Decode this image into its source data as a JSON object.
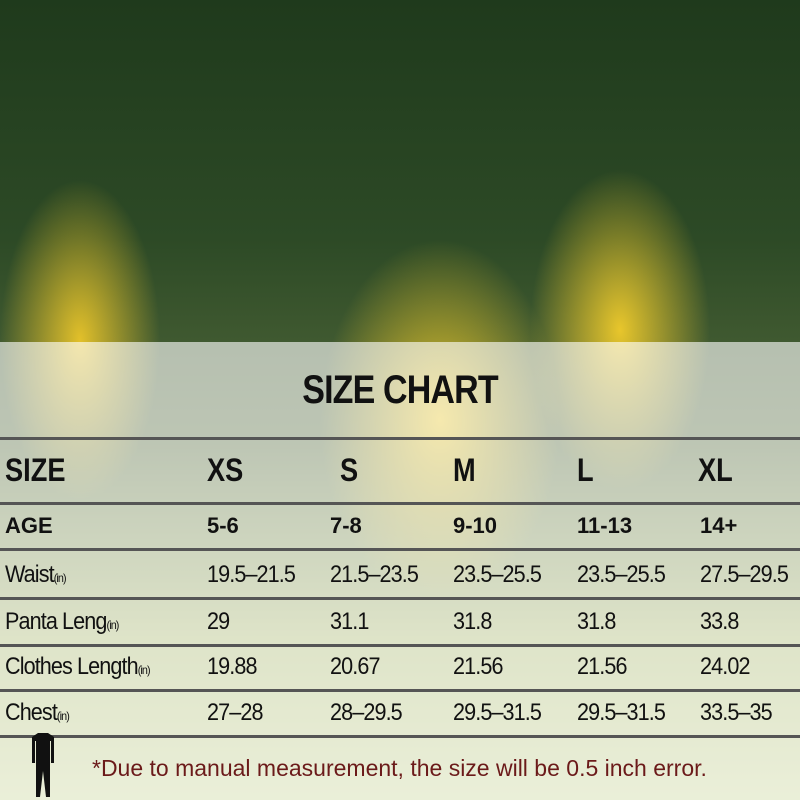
{
  "title": "SIZE CHART",
  "columns": [
    "SIZE",
    "XS",
    "S",
    "M",
    "L",
    "XL"
  ],
  "rows": [
    {
      "label": "AGE",
      "unit": "",
      "values": [
        "5-6",
        "7-8",
        "9-10",
        "11-13",
        "14+"
      ]
    },
    {
      "label": "Waist",
      "unit": "(in)",
      "values": [
        "19.5–21.5",
        "21.5–23.5",
        "23.5–25.5",
        "23.5–25.5",
        "27.5–29.5"
      ]
    },
    {
      "label": "Panta Leng",
      "unit": "(in)",
      "values": [
        "29",
        "31.1",
        "31.8",
        "31.8",
        "33.8"
      ]
    },
    {
      "label": "Clothes Length",
      "unit": "(in)",
      "values": [
        "19.88",
        "20.67",
        "21.56",
        "21.56",
        "24.02"
      ]
    },
    {
      "label": "Chest",
      "unit": "(in)",
      "values": [
        "27–28",
        "28–29.5",
        "29.5–31.5",
        "29.5–31.5",
        "33.5–35"
      ]
    }
  ],
  "note": "*Due to manual measurement, the size will be 0.5 inch error.",
  "icons": [
    "compression-suit-icon"
  ]
}
